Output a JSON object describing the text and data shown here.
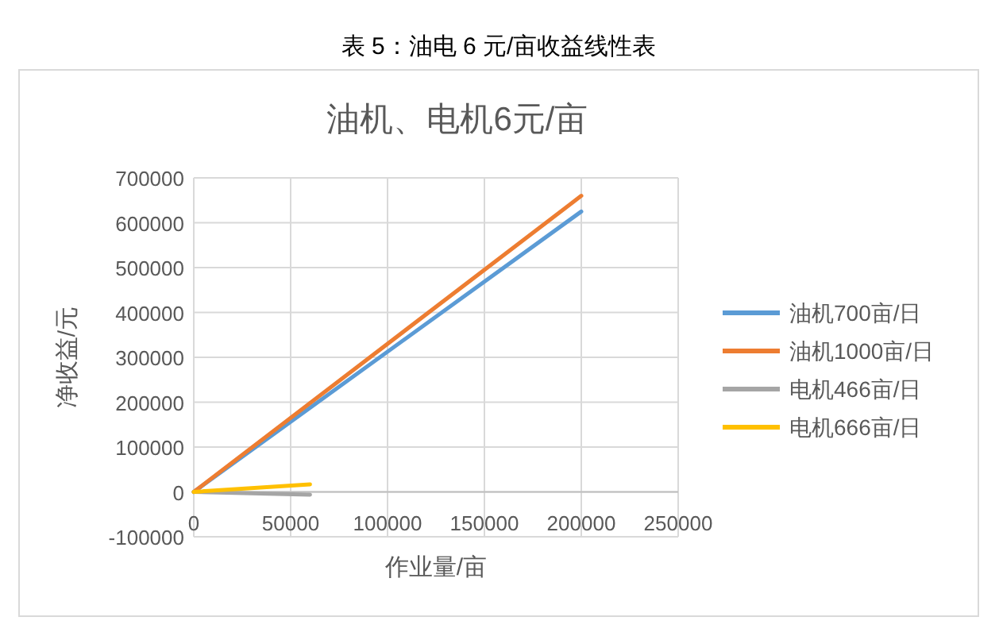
{
  "chart_data": {
    "type": "line",
    "title": "表 5：油电 6 元/亩收益线性表",
    "subtitle": "油机、电机6元/亩",
    "xlabel": "作业量/亩",
    "ylabel": "净收益/元",
    "series": [
      {
        "name": "油机700亩/日",
        "color": "#5b9bd5",
        "x": [
          0,
          200000
        ],
        "values": [
          0,
          625000
        ]
      },
      {
        "name": "油机1000亩/日",
        "color": "#ed7d31",
        "x": [
          0,
          200000
        ],
        "values": [
          0,
          660000
        ]
      },
      {
        "name": "电机466亩/日",
        "color": "#a5a5a5",
        "x": [
          0,
          60000
        ],
        "values": [
          0,
          -6000
        ]
      },
      {
        "name": "电机666亩/日",
        "color": "#ffc000",
        "x": [
          0,
          60000
        ],
        "values": [
          0,
          17000
        ]
      }
    ],
    "xlim": [
      0,
      250000
    ],
    "xticks": [
      0,
      50000,
      100000,
      150000,
      200000,
      250000
    ],
    "ylim": [
      -100000,
      700000
    ],
    "yticks": [
      -100000,
      0,
      100000,
      200000,
      300000,
      400000,
      500000,
      600000,
      700000
    ],
    "grid": true,
    "legend": "right",
    "marker": "none",
    "line_style": "solid"
  }
}
